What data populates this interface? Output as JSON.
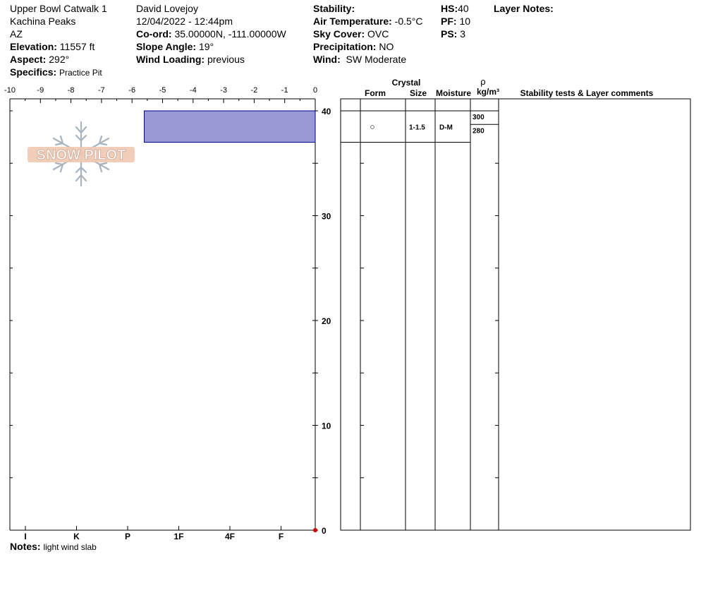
{
  "header": {
    "location": "Upper Bowl Catwalk 1",
    "range": "Kachina Peaks",
    "state": "AZ",
    "elevation_label": "Elevation:",
    "elevation": "11557 ft",
    "aspect_label": "Aspect:",
    "aspect": "292°",
    "specifics_label": "Specifics:",
    "specifics": "Practice Pit",
    "observer": "David Lovejoy",
    "datetime": "12/04/2022 - 12:44pm",
    "coord_label": "Co-ord:",
    "coord": "35.00000N, -111.00000W",
    "slope_label": "Slope Angle:",
    "slope": "19°",
    "wind_loading_label": "Wind Loading:",
    "wind_loading": "previous",
    "stability_label": "Stability:",
    "air_temp_label": "Air Temperature:",
    "air_temp": "-0.5°C",
    "sky_label": "Sky Cover:",
    "sky": "OVC",
    "precip_label": "Precipitation:",
    "precip": "NO",
    "wind_label": "Wind:",
    "wind": "SW Moderate",
    "hs_label": "HS:",
    "hs": "40",
    "pf_label": "PF:",
    "pf": "10",
    "ps_label": "PS:",
    "ps": "3",
    "layer_notes_label": "Layer Notes:"
  },
  "notes": {
    "label": "Notes:",
    "text": "light wind slab"
  },
  "logo": {
    "text": "SNOW PILOT"
  },
  "table": {
    "crystal_header": "Crystal",
    "rho_header": "ρ",
    "form_header": "Form",
    "size_header": "Size",
    "moisture_header": "Moisture",
    "density_header": "kg/m³",
    "comments_header": "Stability tests & Layer comments",
    "layers": [
      {
        "top": 40,
        "bottom": 37,
        "form": "○",
        "size": "1-1.5",
        "moisture": "D-M"
      }
    ],
    "densities": [
      {
        "depth": 40,
        "value": "300"
      },
      {
        "depth": 38.7,
        "value": "280"
      }
    ]
  },
  "chart_data": {
    "type": "bar",
    "title": "",
    "temp_axis": {
      "ticks": [
        "-10",
        "-9",
        "-8",
        "-7",
        "-6",
        "-5",
        "-4",
        "-3",
        "-2",
        "-1",
        "0"
      ],
      "range": [
        -10,
        0
      ]
    },
    "height_axis": {
      "ticks": [
        "40",
        "30",
        "20",
        "10",
        "0"
      ],
      "range": [
        0,
        40
      ]
    },
    "hardness_axis": {
      "ticks": [
        "I",
        "K",
        "P",
        "1F",
        "4F",
        "F"
      ]
    },
    "layers": [
      {
        "top": 40,
        "bottom": 37,
        "hardness_value": 5.6
      }
    ],
    "temperature_points": [
      {
        "depth": 0,
        "temp": 0
      }
    ],
    "colors": {
      "layer_fill": "#9999d6",
      "layer_stroke": "#00008b",
      "temp_marker": "#cc0000"
    }
  }
}
